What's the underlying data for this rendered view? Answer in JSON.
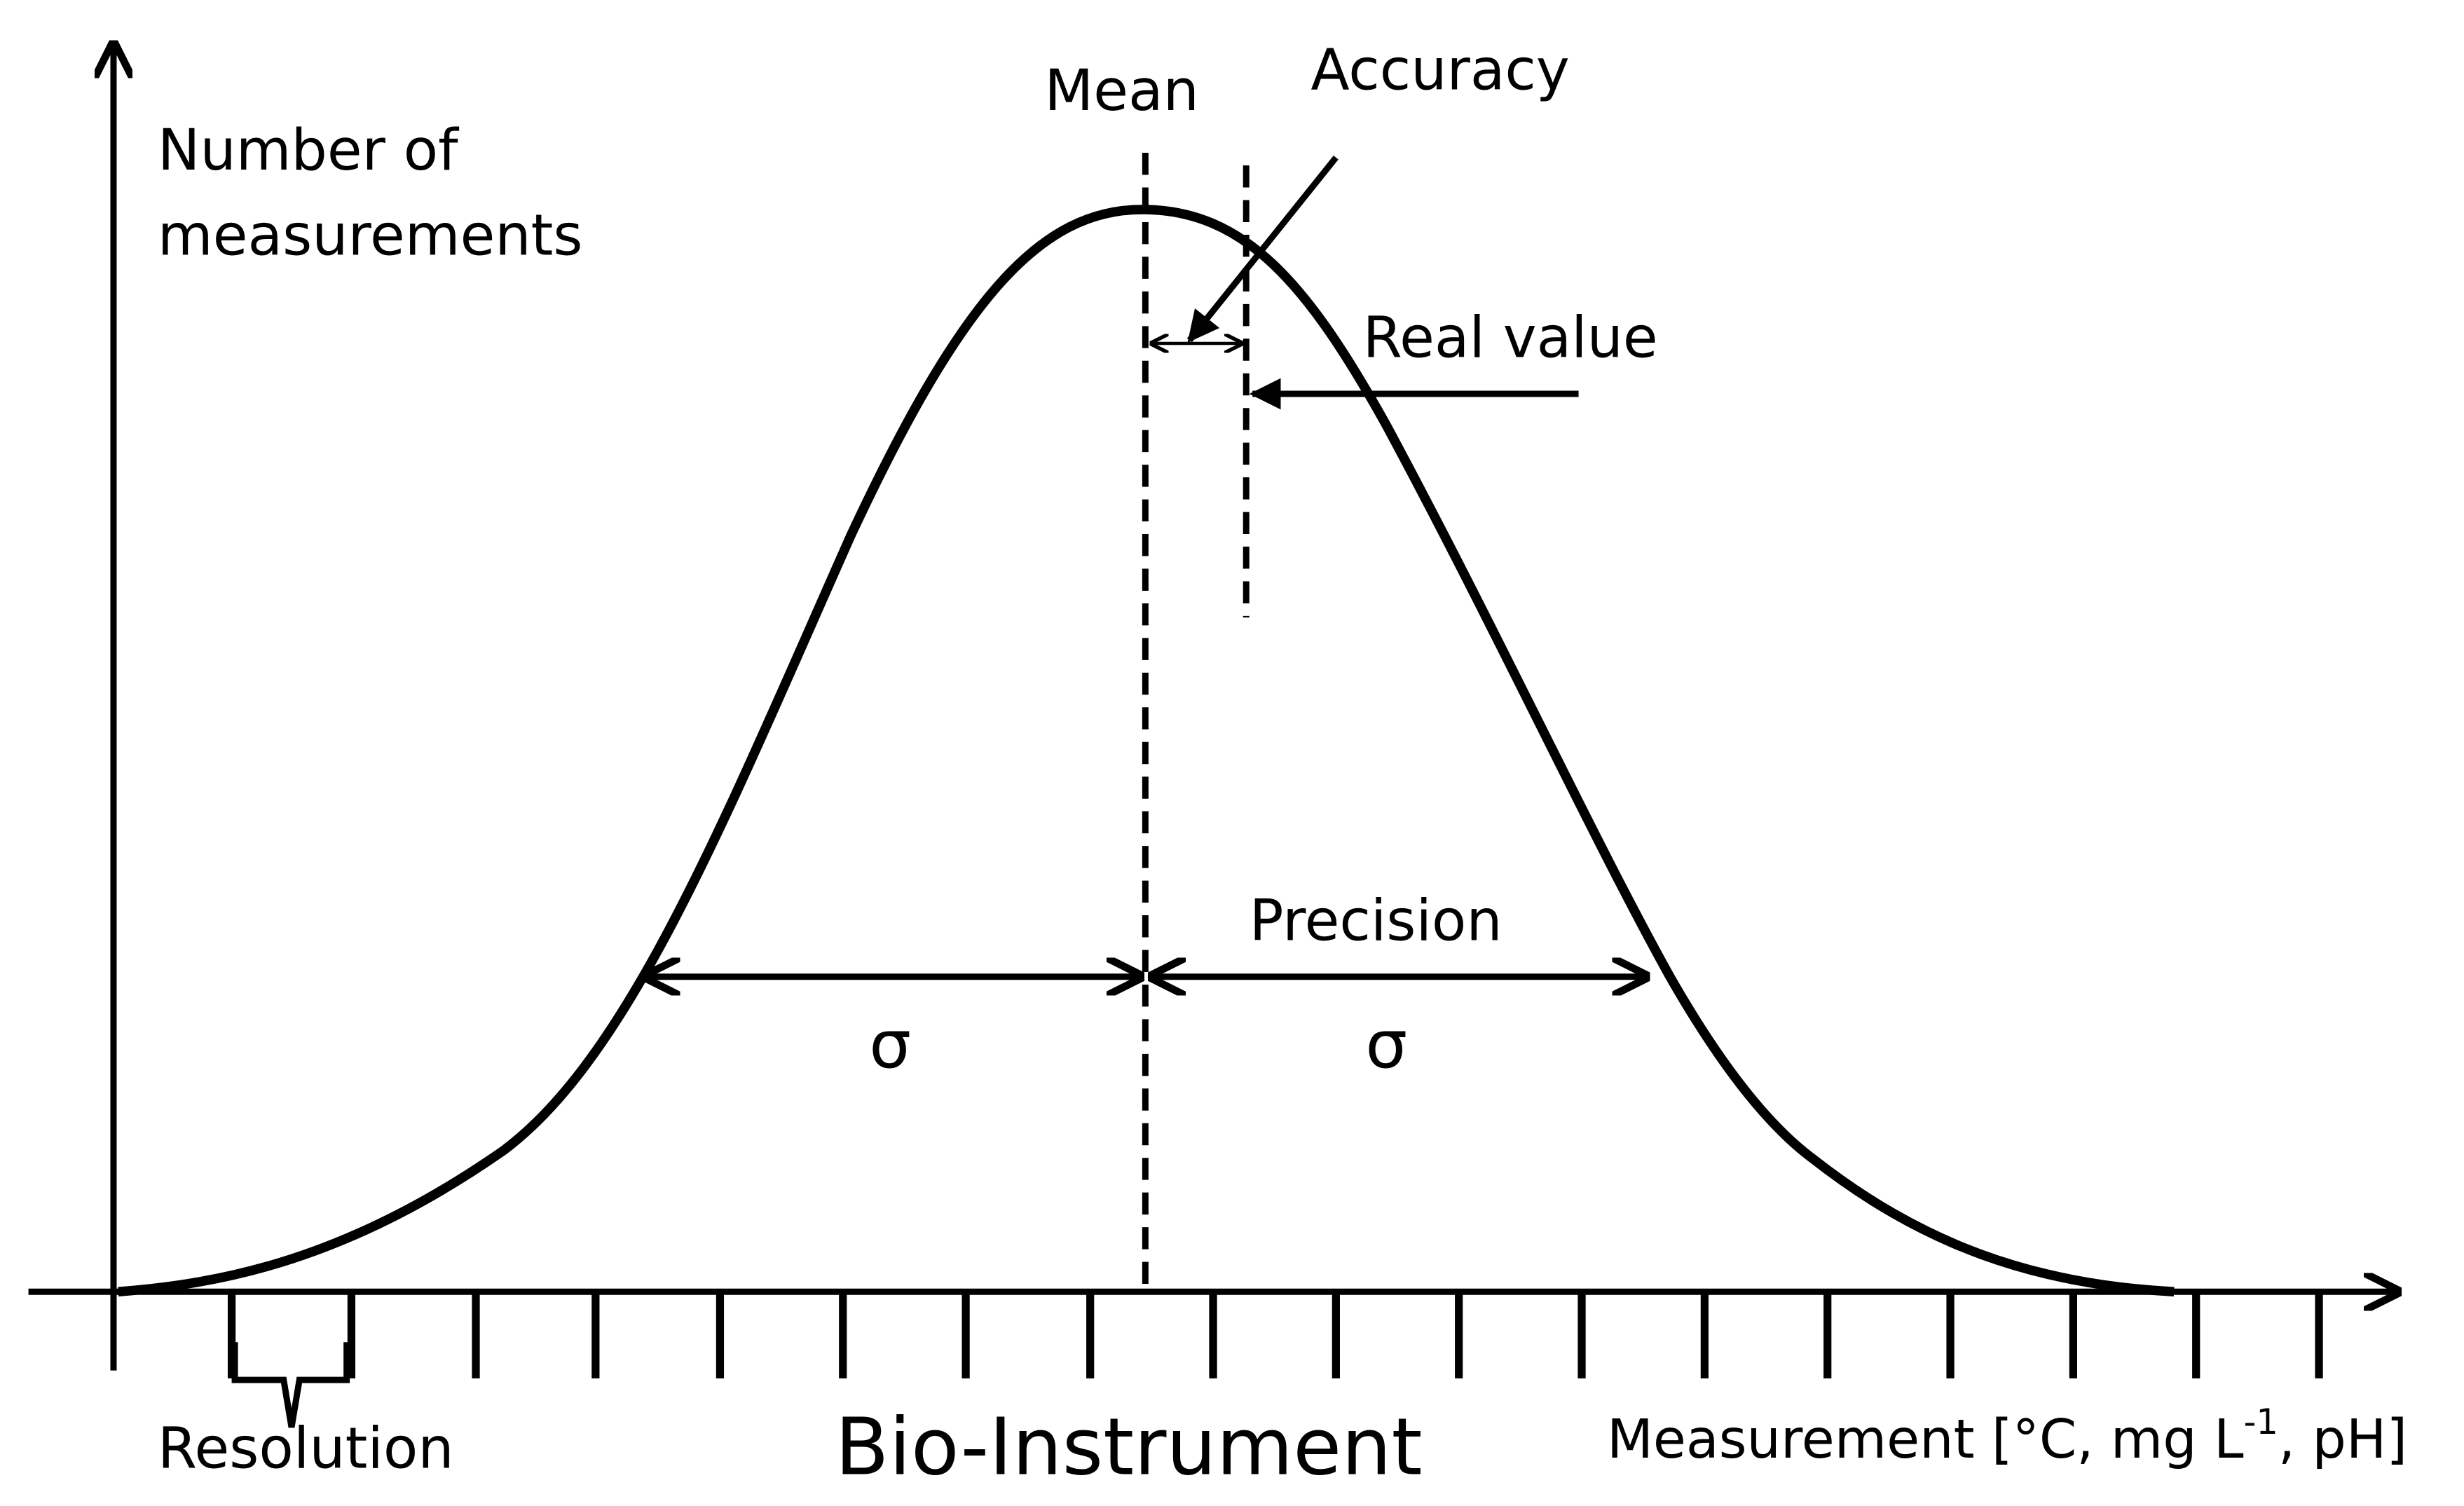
{
  "y_axis_label": [
    "Number of",
    "measurements"
  ],
  "mean_label": "Mean",
  "accuracy_label": "Accuracy",
  "real_value_label": "Real value",
  "precision_label": "Precision",
  "sigma_labels": [
    "σ",
    "σ"
  ],
  "resolution_label": "Resolution",
  "title": "Bio-Instrument",
  "x_axis_label": {
    "text": "Measurement [°C, mg L",
    "superscript": "-1",
    "suffix": ", pH]"
  }
}
